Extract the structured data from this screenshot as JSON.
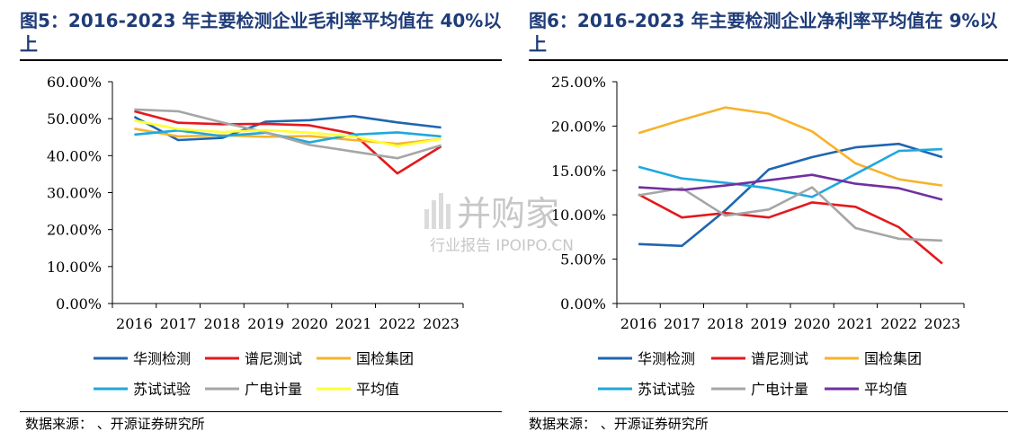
{
  "left": {
    "title": "图5：2016-2023 年主要检测企业毛利率平均值在 40%以上",
    "source": "数据来源：      、开源证券研究所",
    "chart_data": {
      "type": "line",
      "categories": [
        "2016",
        "2017",
        "2018",
        "2019",
        "2020",
        "2021",
        "2022",
        "2023"
      ],
      "ylim": [
        0,
        60
      ],
      "yticks": [
        "0.00%",
        "10.00%",
        "20.00%",
        "30.00%",
        "40.00%",
        "50.00%",
        "60.00%"
      ],
      "legend_position": "bottom",
      "series": [
        {
          "name": "华测检测",
          "color": "#1f66b0",
          "values": [
            50.5,
            44.2,
            44.8,
            49.2,
            49.6,
            50.7,
            49.0,
            47.6
          ]
        },
        {
          "name": "谱尼测试",
          "color": "#e3191c",
          "values": [
            52.0,
            48.9,
            48.5,
            48.6,
            48.2,
            45.9,
            35.2,
            42.5
          ]
        },
        {
          "name": "国检集团",
          "color": "#f7b32b",
          "values": [
            47.3,
            45.2,
            45.5,
            45.1,
            45.3,
            44.2,
            43.2,
            44.5
          ]
        },
        {
          "name": "苏试试验",
          "color": "#1fa8dd",
          "values": [
            45.7,
            46.8,
            45.3,
            46.2,
            43.6,
            45.7,
            46.3,
            45.2
          ]
        },
        {
          "name": "广电计量",
          "color": "#a6a6a6",
          "values": [
            52.5,
            52.0,
            49.0,
            46.3,
            42.9,
            41.1,
            39.3,
            42.8
          ]
        },
        {
          "name": "平均值",
          "color": "#ffff33",
          "values": [
            49.5,
            47.2,
            46.4,
            46.9,
            46.2,
            45.2,
            42.6,
            44.5
          ]
        }
      ]
    }
  },
  "right": {
    "title": "图6：2016-2023 年主要检测企业净利率平均值在 9%以上",
    "source": "数据来源：      、开源证券研究所",
    "chart_data": {
      "type": "line",
      "categories": [
        "2016",
        "2017",
        "2018",
        "2019",
        "2020",
        "2021",
        "2022",
        "2023"
      ],
      "ylim": [
        0,
        25
      ],
      "yticks": [
        "0.00%",
        "5.00%",
        "10.00%",
        "15.00%",
        "20.00%",
        "25.00%"
      ],
      "legend_position": "bottom",
      "series": [
        {
          "name": "华测检测",
          "color": "#1f66b0",
          "values": [
            6.7,
            6.5,
            10.5,
            15.1,
            16.5,
            17.6,
            18.0,
            16.5
          ]
        },
        {
          "name": "谱尼测试",
          "color": "#e3191c",
          "values": [
            12.3,
            9.7,
            10.2,
            9.7,
            11.4,
            10.9,
            8.6,
            4.5
          ]
        },
        {
          "name": "国检集团",
          "color": "#f7b32b",
          "values": [
            19.2,
            20.7,
            22.1,
            21.4,
            19.4,
            15.8,
            14.0,
            13.3
          ]
        },
        {
          "name": "苏试试验",
          "color": "#1fa8dd",
          "values": [
            15.4,
            14.1,
            13.6,
            13.0,
            12.0,
            14.6,
            17.2,
            17.4
          ]
        },
        {
          "name": "广电计量",
          "color": "#a6a6a6",
          "values": [
            12.2,
            13.0,
            9.9,
            10.6,
            13.1,
            8.5,
            7.3,
            7.1
          ]
        },
        {
          "name": "平均值",
          "color": "#7030a0",
          "values": [
            13.1,
            12.8,
            13.3,
            13.9,
            14.5,
            13.5,
            13.0,
            11.7
          ]
        }
      ]
    }
  },
  "watermark": {
    "line1": "并购家",
    "line2": "行业报告 IPOIPO.CN"
  }
}
